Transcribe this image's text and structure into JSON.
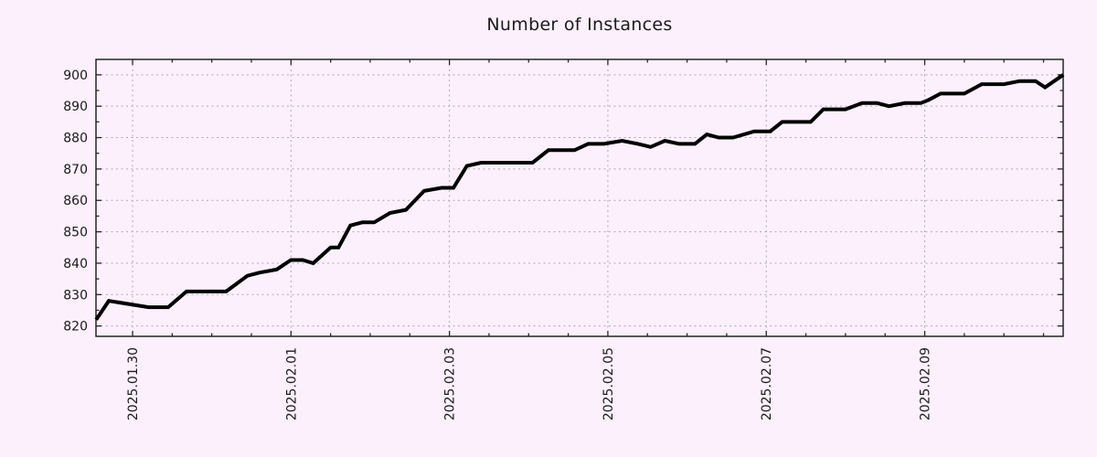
{
  "title": "Number of Instances",
  "colors": {
    "background": "#fcf0fd",
    "line": "#000000",
    "grid": "#ababab",
    "axis": "#262626",
    "text": "#1a1a1a"
  },
  "chart_data": {
    "type": "line",
    "title": "Number of Instances",
    "xlabel": "",
    "ylabel": "",
    "grid": true,
    "legend": "none",
    "x_axis": {
      "epoch_date": "2025-01-30",
      "tick_labels": [
        "2025.01.30",
        "2025.02.01",
        "2025.02.03",
        "2025.02.05",
        "2025.02.07",
        "2025.02.09"
      ],
      "tick_positions_days": [
        0,
        2,
        4,
        6,
        8,
        10
      ],
      "minor_tick_step_days": 0.5,
      "range_days": [
        -0.462,
        11.748
      ]
    },
    "y_axis": {
      "tick_labels": [
        "820",
        "830",
        "840",
        "850",
        "860",
        "870",
        "880",
        "890",
        "900"
      ],
      "ticks": [
        820,
        830,
        840,
        850,
        860,
        870,
        880,
        890,
        900
      ],
      "minor_tick_step": 5,
      "range": [
        816.7,
        904.9
      ]
    },
    "series": [
      {
        "name": "instances",
        "color": "#000000",
        "line_width": 4,
        "points": [
          [
            -0.46,
            822
          ],
          [
            -0.3,
            828
          ],
          [
            -0.05,
            827
          ],
          [
            0.2,
            826
          ],
          [
            0.45,
            826
          ],
          [
            0.68,
            831
          ],
          [
            0.95,
            831
          ],
          [
            1.18,
            831
          ],
          [
            1.45,
            836
          ],
          [
            1.6,
            837
          ],
          [
            1.82,
            838
          ],
          [
            2.0,
            841
          ],
          [
            2.15,
            841
          ],
          [
            2.28,
            840
          ],
          [
            2.5,
            845
          ],
          [
            2.6,
            845
          ],
          [
            2.75,
            852
          ],
          [
            2.9,
            853
          ],
          [
            3.05,
            853
          ],
          [
            3.25,
            856
          ],
          [
            3.45,
            857
          ],
          [
            3.68,
            863
          ],
          [
            3.9,
            864
          ],
          [
            4.05,
            864
          ],
          [
            4.22,
            871
          ],
          [
            4.4,
            872
          ],
          [
            4.65,
            872
          ],
          [
            4.9,
            872
          ],
          [
            5.05,
            872
          ],
          [
            5.25,
            876
          ],
          [
            5.45,
            876
          ],
          [
            5.58,
            876
          ],
          [
            5.75,
            878
          ],
          [
            5.95,
            878
          ],
          [
            6.18,
            879
          ],
          [
            6.38,
            878
          ],
          [
            6.54,
            877
          ],
          [
            6.72,
            879
          ],
          [
            6.9,
            878
          ],
          [
            7.1,
            878
          ],
          [
            7.25,
            881
          ],
          [
            7.4,
            880
          ],
          [
            7.58,
            880
          ],
          [
            7.85,
            882
          ],
          [
            8.05,
            882
          ],
          [
            8.2,
            885
          ],
          [
            8.4,
            885
          ],
          [
            8.56,
            885
          ],
          [
            8.72,
            889
          ],
          [
            9.0,
            889
          ],
          [
            9.21,
            891
          ],
          [
            9.4,
            891
          ],
          [
            9.55,
            890
          ],
          [
            9.75,
            891
          ],
          [
            9.95,
            891
          ],
          [
            10.05,
            892
          ],
          [
            10.2,
            894
          ],
          [
            10.5,
            894
          ],
          [
            10.72,
            897
          ],
          [
            11.0,
            897
          ],
          [
            11.2,
            898
          ],
          [
            11.4,
            898
          ],
          [
            11.52,
            896
          ],
          [
            11.75,
            900
          ]
        ]
      }
    ]
  }
}
